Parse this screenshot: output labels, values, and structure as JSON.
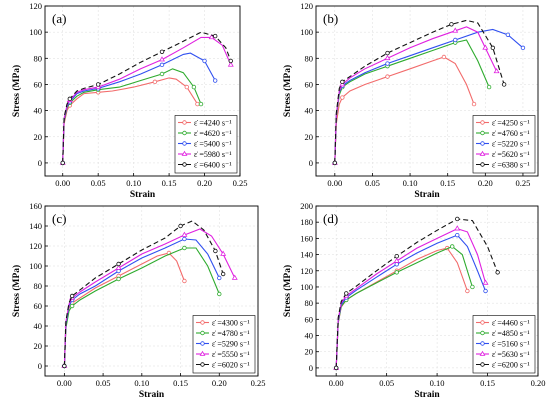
{
  "chart_data": [
    {
      "type": "line",
      "panel_label": "(a)",
      "xlabel": "Strain",
      "ylabel": "Stress (MPa)",
      "xlim": [
        -0.025,
        0.25
      ],
      "ylim": [
        -10,
        120
      ],
      "xticks": [
        "0.00",
        "0.05",
        "0.10",
        "0.15",
        "0.20",
        "0.25"
      ],
      "yticks": [
        "0",
        "20",
        "40",
        "60",
        "80",
        "100",
        "120"
      ],
      "grid": true,
      "legend_position": "lower-right",
      "series": [
        {
          "name": "ε̇ =4240 s⁻¹",
          "color": "#f26b6b",
          "marker": "circle",
          "dash": "",
          "x": [
            0,
            0.002,
            0.006,
            0.01,
            0.02,
            0.03,
            0.05,
            0.07,
            0.1,
            0.13,
            0.15,
            0.16,
            0.175,
            0.19
          ],
          "y": [
            0,
            30,
            40,
            44,
            49,
            53,
            54,
            55,
            58,
            62,
            65,
            64,
            58,
            45
          ]
        },
        {
          "name": "ε̇ =4620 s⁻¹",
          "color": "#2eab2e",
          "marker": "circle",
          "dash": "",
          "x": [
            0,
            0.002,
            0.006,
            0.01,
            0.02,
            0.03,
            0.05,
            0.08,
            0.11,
            0.14,
            0.155,
            0.17,
            0.185,
            0.195
          ],
          "y": [
            0,
            32,
            42,
            46,
            51,
            54,
            56,
            58,
            63,
            68,
            72,
            69,
            58,
            45
          ]
        },
        {
          "name": "ε̇ =5400 s⁻¹",
          "color": "#3050f0",
          "marker": "circle",
          "dash": "",
          "x": [
            0,
            0.002,
            0.006,
            0.01,
            0.02,
            0.03,
            0.05,
            0.08,
            0.11,
            0.14,
            0.17,
            0.18,
            0.2,
            0.215
          ],
          "y": [
            0,
            33,
            43,
            47,
            53,
            55,
            57,
            62,
            68,
            75,
            83,
            84,
            78,
            63
          ]
        },
        {
          "name": "ε̇ =5980 s⁻¹",
          "color": "#e020e0",
          "marker": "triangle",
          "dash": "",
          "x": [
            0,
            0.002,
            0.006,
            0.01,
            0.02,
            0.03,
            0.05,
            0.08,
            0.11,
            0.14,
            0.17,
            0.195,
            0.21,
            0.225,
            0.237
          ],
          "y": [
            0,
            34,
            44,
            48,
            54,
            56,
            58,
            64,
            72,
            79,
            88,
            96,
            96,
            90,
            75
          ]
        },
        {
          "name": "ε̇ =6400 s⁻¹",
          "color": "#111111",
          "marker": "circle",
          "dash": "5 3",
          "x": [
            0,
            0.002,
            0.006,
            0.01,
            0.02,
            0.03,
            0.05,
            0.08,
            0.11,
            0.14,
            0.17,
            0.195,
            0.215,
            0.23,
            0.237
          ],
          "y": [
            0,
            35,
            45,
            49,
            55,
            57,
            60,
            68,
            77,
            85,
            93,
            100,
            97,
            88,
            78
          ]
        }
      ]
    },
    {
      "type": "line",
      "panel_label": "(b)",
      "xlabel": "Strain",
      "ylabel": "Stress (MPa)",
      "xlim": [
        -0.025,
        0.27
      ],
      "ylim": [
        -10,
        120
      ],
      "xticks": [
        "0.00",
        "0.05",
        "0.10",
        "0.15",
        "0.20",
        "0.25"
      ],
      "yticks": [
        "0",
        "20",
        "40",
        "60",
        "80",
        "100",
        "120"
      ],
      "grid": true,
      "legend_position": "lower-right",
      "series": [
        {
          "name": "ε̇ =4250 s⁻¹",
          "color": "#f26b6b",
          "marker": "circle",
          "dash": "",
          "x": [
            0,
            0.002,
            0.006,
            0.01,
            0.02,
            0.04,
            0.07,
            0.1,
            0.13,
            0.145,
            0.16,
            0.175,
            0.185
          ],
          "y": [
            0,
            30,
            45,
            50,
            55,
            60,
            66,
            72,
            78,
            81,
            76,
            60,
            45
          ]
        },
        {
          "name": "ε̇ =4760 s⁻¹",
          "color": "#2eab2e",
          "marker": "circle",
          "dash": "",
          "x": [
            0,
            0.002,
            0.006,
            0.01,
            0.02,
            0.04,
            0.07,
            0.1,
            0.13,
            0.16,
            0.175,
            0.19,
            0.205
          ],
          "y": [
            0,
            35,
            52,
            58,
            62,
            68,
            74,
            80,
            86,
            92,
            94,
            78,
            58
          ]
        },
        {
          "name": "ε̇ =5220 s⁻¹",
          "color": "#3050f0",
          "marker": "circle",
          "dash": "",
          "x": [
            0,
            0.002,
            0.006,
            0.01,
            0.02,
            0.04,
            0.07,
            0.1,
            0.13,
            0.16,
            0.19,
            0.21,
            0.23,
            0.25
          ],
          "y": [
            0,
            36,
            54,
            59,
            63,
            69,
            76,
            82,
            88,
            94,
            100,
            102,
            98,
            88
          ]
        },
        {
          "name": "ε̇ =5620 s⁻¹",
          "color": "#e020e0",
          "marker": "triangle",
          "dash": "",
          "x": [
            0,
            0.002,
            0.006,
            0.01,
            0.02,
            0.04,
            0.07,
            0.1,
            0.13,
            0.16,
            0.175,
            0.19,
            0.2,
            0.215
          ],
          "y": [
            0,
            37,
            55,
            60,
            65,
            72,
            80,
            88,
            95,
            101,
            104,
            100,
            88,
            70
          ]
        },
        {
          "name": "ε̇ =6380 s⁻¹",
          "color": "#111111",
          "marker": "circle",
          "dash": "5 3",
          "x": [
            0,
            0.002,
            0.006,
            0.01,
            0.02,
            0.04,
            0.07,
            0.1,
            0.13,
            0.155,
            0.175,
            0.19,
            0.21,
            0.225
          ],
          "y": [
            0,
            38,
            57,
            62,
            66,
            74,
            84,
            92,
            100,
            106,
            109,
            107,
            88,
            60
          ]
        }
      ]
    },
    {
      "type": "line",
      "panel_label": "(c)",
      "xlabel": "Strain",
      "ylabel": "Stress (MPa)",
      "xlim": [
        -0.025,
        0.25
      ],
      "ylim": [
        -10,
        160
      ],
      "xticks": [
        "0.00",
        "0.05",
        "0.10",
        "0.15",
        "0.20",
        "0.25"
      ],
      "yticks": [
        "0",
        "20",
        "40",
        "60",
        "80",
        "100",
        "120",
        "140",
        "160"
      ],
      "grid": true,
      "legend_position": "lower-right",
      "series": [
        {
          "name": "ε̇ =4300 s⁻¹",
          "color": "#f26b6b",
          "marker": "circle",
          "dash": "",
          "x": [
            0,
            0.002,
            0.006,
            0.01,
            0.02,
            0.04,
            0.07,
            0.1,
            0.12,
            0.135,
            0.145,
            0.155
          ],
          "y": [
            0,
            40,
            58,
            63,
            68,
            78,
            90,
            102,
            110,
            113,
            105,
            85
          ]
        },
        {
          "name": "ε̇ =4780 s⁻¹",
          "color": "#2eab2e",
          "marker": "circle",
          "dash": "",
          "x": [
            0,
            0.002,
            0.006,
            0.01,
            0.02,
            0.04,
            0.07,
            0.1,
            0.13,
            0.155,
            0.17,
            0.185,
            0.2
          ],
          "y": [
            0,
            38,
            55,
            60,
            66,
            75,
            87,
            98,
            110,
            118,
            118,
            100,
            72
          ]
        },
        {
          "name": "ε̇ =5290 s⁻¹",
          "color": "#3050f0",
          "marker": "circle",
          "dash": "",
          "x": [
            0,
            0.002,
            0.006,
            0.01,
            0.02,
            0.04,
            0.07,
            0.1,
            0.13,
            0.155,
            0.17,
            0.185,
            0.2
          ],
          "y": [
            0,
            42,
            60,
            66,
            72,
            80,
            95,
            108,
            118,
            127,
            126,
            112,
            88
          ]
        },
        {
          "name": "ε̇ =5550 s⁻¹",
          "color": "#e020e0",
          "marker": "triangle",
          "dash": "",
          "x": [
            0,
            0.002,
            0.006,
            0.01,
            0.02,
            0.04,
            0.07,
            0.1,
            0.13,
            0.155,
            0.175,
            0.19,
            0.205,
            0.22
          ],
          "y": [
            0,
            44,
            62,
            68,
            74,
            84,
            98,
            112,
            122,
            131,
            137,
            130,
            112,
            88
          ]
        },
        {
          "name": "ε̇ =6020 s⁻¹",
          "color": "#111111",
          "marker": "circle",
          "dash": "5 3",
          "x": [
            0,
            0.002,
            0.006,
            0.01,
            0.02,
            0.04,
            0.07,
            0.1,
            0.13,
            0.15,
            0.165,
            0.18,
            0.195,
            0.205
          ],
          "y": [
            0,
            45,
            63,
            70,
            76,
            88,
            102,
            116,
            128,
            140,
            145,
            136,
            115,
            92
          ]
        }
      ]
    },
    {
      "type": "line",
      "panel_label": "(d)",
      "xlabel": "Strain",
      "ylabel": "Stress (MPa)",
      "xlim": [
        -0.02,
        0.2
      ],
      "ylim": [
        -10,
        200
      ],
      "xticks": [
        "0.00",
        "0.05",
        "0.10",
        "0.15",
        "0.20"
      ],
      "yticks": [
        "0",
        "20",
        "40",
        "60",
        "80",
        "100",
        "120",
        "140",
        "160",
        "180",
        "200"
      ],
      "grid": true,
      "legend_position": "lower-right",
      "series": [
        {
          "name": "ε̇ =4460 s⁻¹",
          "color": "#f26b6b",
          "marker": "circle",
          "dash": "",
          "x": [
            0,
            0.002,
            0.005,
            0.01,
            0.02,
            0.04,
            0.06,
            0.08,
            0.1,
            0.11,
            0.12,
            0.13
          ],
          "y": [
            0,
            55,
            75,
            84,
            92,
            106,
            120,
            134,
            145,
            148,
            130,
            95
          ]
        },
        {
          "name": "ε̇ =4850 s⁻¹",
          "color": "#2eab2e",
          "marker": "circle",
          "dash": "",
          "x": [
            0,
            0.002,
            0.005,
            0.01,
            0.02,
            0.04,
            0.06,
            0.08,
            0.1,
            0.115,
            0.125,
            0.135
          ],
          "y": [
            0,
            56,
            76,
            84,
            92,
            105,
            118,
            130,
            142,
            150,
            140,
            100
          ]
        },
        {
          "name": "ε̇ =5160 s⁻¹",
          "color": "#3050f0",
          "marker": "circle",
          "dash": "",
          "x": [
            0,
            0.002,
            0.005,
            0.01,
            0.02,
            0.04,
            0.06,
            0.08,
            0.1,
            0.12,
            0.13,
            0.14,
            0.148
          ],
          "y": [
            0,
            58,
            78,
            87,
            96,
            112,
            128,
            142,
            154,
            164,
            150,
            120,
            95
          ]
        },
        {
          "name": "ε̇ =5630 s⁻¹",
          "color": "#e020e0",
          "marker": "triangle",
          "dash": "",
          "x": [
            0,
            0.002,
            0.005,
            0.01,
            0.02,
            0.04,
            0.06,
            0.08,
            0.1,
            0.12,
            0.13,
            0.14,
            0.148
          ],
          "y": [
            0,
            60,
            80,
            89,
            98,
            116,
            132,
            148,
            160,
            172,
            168,
            140,
            105
          ]
        },
        {
          "name": "ε̇ =6200 s⁻¹",
          "color": "#111111",
          "marker": "circle",
          "dash": "5 3",
          "x": [
            0,
            0.002,
            0.005,
            0.01,
            0.02,
            0.04,
            0.06,
            0.08,
            0.1,
            0.12,
            0.135,
            0.15,
            0.16
          ],
          "y": [
            0,
            62,
            82,
            92,
            101,
            120,
            138,
            155,
            170,
            184,
            182,
            150,
            118
          ]
        }
      ]
    }
  ]
}
